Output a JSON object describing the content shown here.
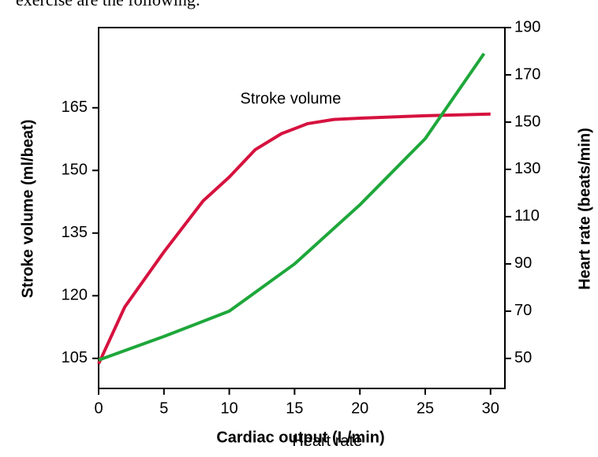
{
  "header_text": "exercise are the following:",
  "chart_data": {
    "type": "line",
    "xlabel": "Cardiac output (L/min)",
    "ylabel": "Stroke volume (ml/beat)",
    "y2label": "Heart rate (beats/min)",
    "xlim": [
      0,
      31.1
    ],
    "xticks": [
      0,
      5,
      10,
      15,
      20,
      25,
      30
    ],
    "ylim": [
      97.8,
      184.2
    ],
    "yticks": [
      105,
      120,
      135,
      150,
      165
    ],
    "y2lim": [
      37.3,
      190
    ],
    "y2ticks": [
      50,
      70,
      90,
      110,
      130,
      150,
      170,
      190
    ],
    "grid": false,
    "annotations": [
      {
        "text": "Stroke volume",
        "x": 14.7,
        "y": 167
      },
      {
        "text": "Heart rate",
        "x": 17.5,
        "y": 85
      }
    ],
    "series": [
      {
        "name": "Stroke volume",
        "color": "#d6123f",
        "axis": "y",
        "x": [
          0,
          2,
          5,
          8,
          10,
          12,
          14,
          16,
          18,
          20,
          25,
          30
        ],
        "values": [
          103.7,
          117.3,
          130.5,
          142.7,
          148.4,
          155,
          158.8,
          161.2,
          162.2,
          162.5,
          163.1,
          163.5
        ]
      },
      {
        "name": "Heart rate",
        "color": "#1ea73a",
        "axis": "y2",
        "x": [
          0,
          5,
          10,
          15,
          20,
          25,
          29.5
        ],
        "values": [
          49.3,
          59.3,
          70,
          90,
          115,
          143,
          179
        ]
      }
    ]
  }
}
